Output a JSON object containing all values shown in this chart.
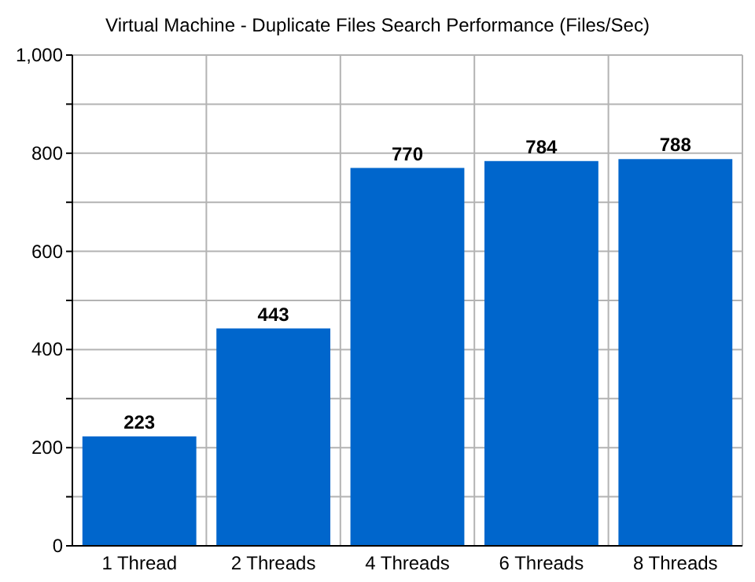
{
  "chart_data": {
    "type": "bar",
    "title": "Virtual Machine - Duplicate Files Search Performance (Files/Sec)",
    "categories": [
      "1 Thread",
      "2 Threads",
      "4 Threads",
      "6 Threads",
      "8 Threads"
    ],
    "values": [
      223,
      443,
      770,
      784,
      788
    ],
    "color": "#0066cc",
    "ylim": [
      0,
      1000
    ],
    "yticks": [
      0,
      {
        "value": 100,
        "label": null
      },
      200,
      {
        "value": 300,
        "label": null
      },
      400,
      {
        "value": 500,
        "label": null
      },
      600,
      {
        "value": 700,
        "label": null
      },
      800,
      {
        "value": 900,
        "label": null
      },
      {
        "value": 1000,
        "label": "1,000"
      }
    ],
    "grid": true,
    "data_labels": true
  }
}
